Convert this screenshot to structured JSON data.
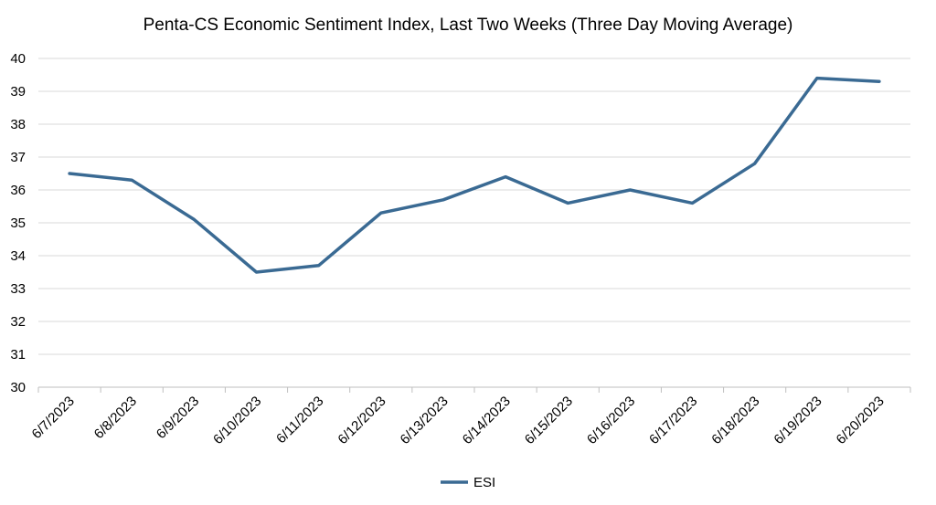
{
  "chart_data": {
    "type": "line",
    "title": "Penta-CS Economic Sentiment Index, Last Two Weeks (Three Day Moving Average)",
    "categories": [
      "6/7/2023",
      "6/8/2023",
      "6/9/2023",
      "6/10/2023",
      "6/11/2023",
      "6/12/2023",
      "6/13/2023",
      "6/14/2023",
      "6/15/2023",
      "6/16/2023",
      "6/17/2023",
      "6/18/2023",
      "6/19/2023",
      "6/20/2023"
    ],
    "series": [
      {
        "name": "ESI",
        "values": [
          36.5,
          36.3,
          35.1,
          33.5,
          33.7,
          35.3,
          35.7,
          36.4,
          35.6,
          36.0,
          35.6,
          36.8,
          39.4,
          39.3
        ],
        "color": "#3a6a93"
      }
    ],
    "ylim": [
      30,
      40
    ],
    "yticks": [
      "30",
      "31",
      "32",
      "33",
      "34",
      "35",
      "36",
      "37",
      "38",
      "39",
      "40"
    ],
    "grid": true,
    "legend": "bottom-center"
  }
}
